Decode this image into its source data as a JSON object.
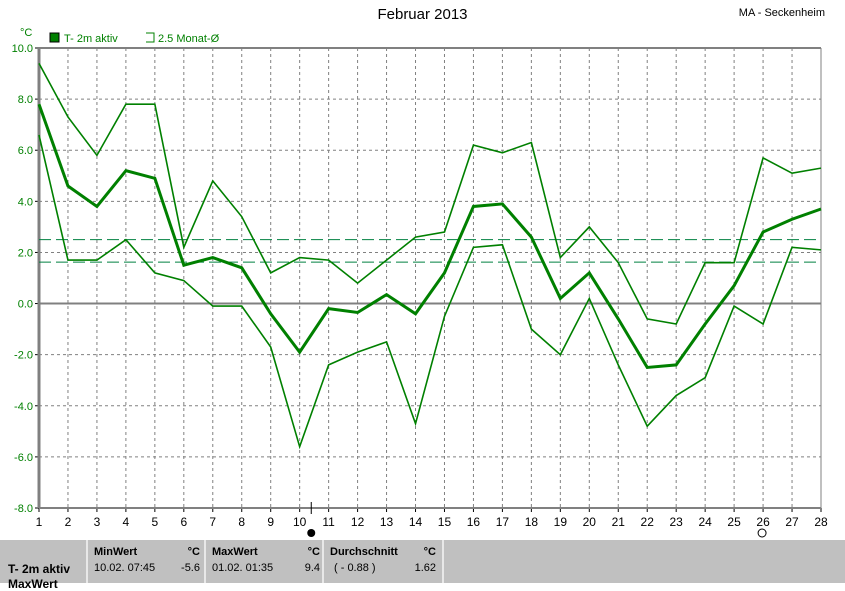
{
  "header": {
    "title": "Februar 2013",
    "station": "MA - Seckenheim"
  },
  "chart_data": {
    "type": "line",
    "title": "Februar 2013",
    "ylabel": "°C",
    "ylim": [
      -8,
      10
    ],
    "xlim": [
      1,
      28
    ],
    "grid": true,
    "legend_placement": "top-left",
    "legend": [
      "T- 2m aktiv",
      "2.5 Monat-Ø"
    ],
    "x": [
      1,
      2,
      3,
      4,
      5,
      6,
      7,
      8,
      9,
      10,
      11,
      12,
      13,
      14,
      15,
      16,
      17,
      18,
      19,
      20,
      21,
      22,
      23,
      24,
      25,
      26,
      27,
      28
    ],
    "yticks": [
      "10.0",
      "8.0",
      "6.0",
      "4.0",
      "2.0",
      "0.0",
      "-2.0",
      "-4.0",
      "-6.0",
      "-8.0"
    ],
    "series": [
      {
        "role": "max",
        "values": [
          9.4,
          7.3,
          5.8,
          7.8,
          7.8,
          2.2,
          4.8,
          3.4,
          1.2,
          1.8,
          1.7,
          0.8,
          1.7,
          2.6,
          2.8,
          6.2,
          5.9,
          6.3,
          1.8,
          3.0,
          1.6,
          -0.6,
          -0.8,
          1.6,
          1.6,
          5.7,
          5.1,
          5.3
        ]
      },
      {
        "role": "mean",
        "values": [
          7.8,
          4.6,
          3.8,
          5.2,
          4.9,
          1.5,
          1.8,
          1.4,
          -0.4,
          -1.9,
          -0.2,
          -0.35,
          0.35,
          -0.4,
          1.2,
          3.8,
          3.9,
          2.6,
          0.2,
          1.2,
          -0.6,
          -2.5,
          -2.4,
          -0.8,
          0.7,
          2.8,
          3.3,
          3.7
        ]
      },
      {
        "role": "min",
        "values": [
          6.6,
          1.7,
          1.7,
          2.5,
          1.2,
          0.9,
          -0.1,
          -0.1,
          -1.7,
          -5.6,
          -2.4,
          -1.9,
          -1.5,
          -4.7,
          -0.5,
          2.2,
          2.3,
          -1.0,
          -2.0,
          0.2,
          -2.4,
          -4.8,
          -3.6,
          -2.9,
          -0.1,
          -0.8,
          2.2,
          2.1
        ]
      }
    ],
    "reference_lines": [
      2.5,
      1.62
    ],
    "markers": {
      "cursor_x": 10.4,
      "circle_x": 26
    },
    "colors": {
      "series": "#008000",
      "reference": "#008040",
      "axis": "#808080",
      "ticklabel": "#008000"
    }
  },
  "stats": {
    "row_label": "T- 2m aktiv",
    "row_label_2": "MaxWert",
    "min": {
      "label": "MinWert",
      "unit": "°C",
      "when": "10.02.  07:45",
      "value": "-5.6"
    },
    "max": {
      "label": "MaxWert",
      "unit": "°C",
      "when": "01.02.  01:35",
      "value": "9.4"
    },
    "avg": {
      "label": "Durchschnitt",
      "unit": "°C",
      "when": "( - 0.88 )",
      "value": "1.62"
    }
  }
}
